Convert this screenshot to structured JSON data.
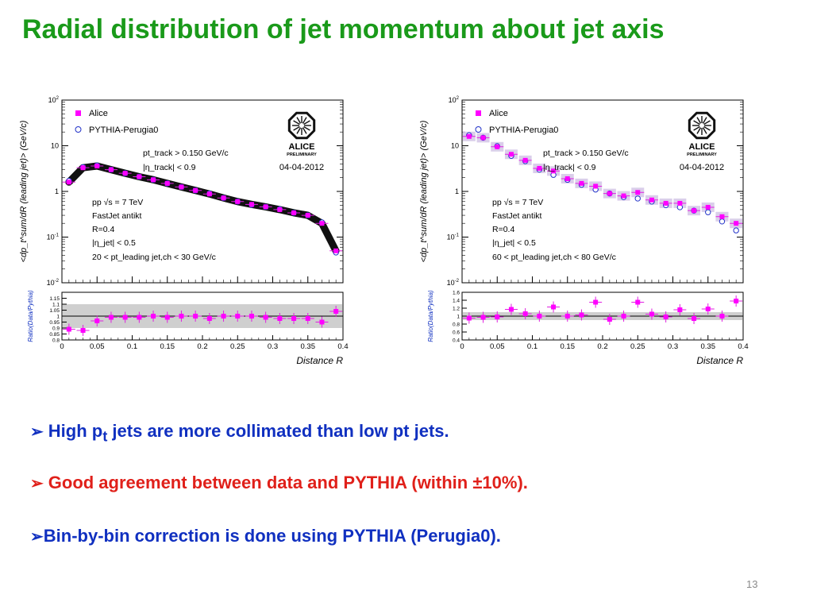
{
  "slide": {
    "title": "Radial distribution of jet momentum about jet axis",
    "page_number": "13"
  },
  "bullets": [
    {
      "arrow": "➢",
      "text_a": "High p",
      "sub": "t",
      "text_b": " jets are more collimated than low pt jets.",
      "color": "#1030c0"
    },
    {
      "arrow": "➢",
      "text_a": "Good agreement between data and PYTHIA (within ±10%).",
      "sub": "",
      "text_b": "",
      "color": "#e0201a"
    },
    {
      "arrow": "➢",
      "text_a": "Bin-by-bin correction is done using PYTHIA (Perugia0).",
      "sub": "",
      "text_b": "",
      "color": "#1030c0"
    }
  ],
  "chart_data": [
    {
      "type": "scatter",
      "legend": [
        "Alice",
        "PYTHIA-Perugia0"
      ],
      "logo_text": [
        "ALICE",
        "PRELIMINARY"
      ],
      "date": "04-04-2012",
      "cut_lines": [
        "pt_track > 0.150 GeV/c",
        "|η_track| < 0.9"
      ],
      "info_lines": [
        "pp √s = 7 TeV",
        "FastJet antikt",
        "R=0.4",
        "|η_jet| < 0.5",
        "20 < pt_leading jet,ch < 30 GeV/c"
      ],
      "ylabel": "<dp_t^sum/dR (leading jet)> (GeV/c)",
      "ratio_ylabel": "Ratio(Data/Pythia)",
      "xlabel": "Distance R",
      "xlim": [
        0,
        0.4
      ],
      "ylim": [
        0.01,
        100
      ],
      "yscale": "log",
      "x_ticks": [
        "0",
        "0.05",
        "0.1",
        "0.15",
        "0.2",
        "0.25",
        "0.3",
        "0.35",
        "0.4"
      ],
      "y_ticks": [
        "10^-2",
        "10^-1",
        "1",
        "10",
        "10^2"
      ],
      "ratio_ylim": [
        0.8,
        1.2
      ],
      "ratio_ticks": [
        "0.8",
        "0.85",
        "0.9",
        "0.95",
        "1",
        "1.05",
        "1.1",
        "1.15"
      ],
      "ratio_band": [
        0.9,
        1.1
      ],
      "x": [
        0.01,
        0.03,
        0.05,
        0.07,
        0.09,
        0.11,
        0.13,
        0.15,
        0.17,
        0.19,
        0.21,
        0.23,
        0.25,
        0.27,
        0.29,
        0.31,
        0.33,
        0.35,
        0.37,
        0.39
      ],
      "series": [
        {
          "name": "Alice",
          "values": [
            1.6,
            3.3,
            3.6,
            3.0,
            2.5,
            2.1,
            1.8,
            1.5,
            1.25,
            1.05,
            0.88,
            0.72,
            0.6,
            0.52,
            0.46,
            0.4,
            0.34,
            0.3,
            0.2,
            0.05
          ]
        },
        {
          "name": "PYTHIA-Perugia0",
          "values": [
            1.7,
            3.4,
            3.7,
            3.0,
            2.5,
            2.1,
            1.8,
            1.5,
            1.25,
            1.05,
            0.9,
            0.72,
            0.6,
            0.51,
            0.46,
            0.41,
            0.34,
            0.3,
            0.21,
            0.046
          ]
        }
      ],
      "ratio": [
        0.89,
        0.88,
        0.96,
        0.99,
        0.99,
        0.99,
        1.0,
        0.99,
        1.0,
        1.0,
        0.98,
        1.0,
        1.0,
        1.0,
        0.99,
        0.98,
        0.98,
        0.98,
        0.95,
        1.04
      ]
    },
    {
      "type": "scatter",
      "legend": [
        "Alice",
        "PYTHIA-Perugia0"
      ],
      "logo_text": [
        "ALICE",
        "PRELIMINARY"
      ],
      "date": "04-04-2012",
      "cut_lines": [
        "pt_track > 0.150 GeV/c",
        "|η_track| < 0.9"
      ],
      "info_lines": [
        "pp √s = 7 TeV",
        "FastJet antikt",
        "R=0.4",
        "|η_jet| < 0.5",
        "60 < pt_leading jet,ch < 80 GeV/c"
      ],
      "ylabel": "<dp_t^sum/dR (leading jet)> (GeV/c)",
      "ratio_ylabel": "Ratio(Data/Pythia)",
      "xlabel": "Distance R",
      "xlim": [
        0,
        0.4
      ],
      "ylim": [
        0.01,
        100
      ],
      "yscale": "log",
      "x_ticks": [
        "0",
        "0.05",
        "0.1",
        "0.15",
        "0.2",
        "0.25",
        "0.3",
        "0.35",
        "0.4"
      ],
      "y_ticks": [
        "10^-2",
        "10^-1",
        "1",
        "10",
        "10^2"
      ],
      "ratio_ylim": [
        0.4,
        1.6
      ],
      "ratio_ticks": [
        "0.4",
        "0.6",
        "0.8",
        "1",
        "1.2",
        "1.4",
        "1.6"
      ],
      "ratio_band": [
        0.9,
        1.1
      ],
      "x": [
        0.01,
        0.03,
        0.05,
        0.07,
        0.09,
        0.11,
        0.13,
        0.15,
        0.17,
        0.19,
        0.21,
        0.23,
        0.25,
        0.27,
        0.29,
        0.31,
        0.33,
        0.35,
        0.37,
        0.39
      ],
      "series": [
        {
          "name": "Alice",
          "values": [
            16,
            15,
            9.5,
            6.5,
            4.8,
            3.2,
            2.8,
            1.9,
            1.5,
            1.3,
            0.9,
            0.8,
            0.95,
            0.65,
            0.55,
            0.55,
            0.38,
            0.45,
            0.28,
            0.2
          ]
        },
        {
          "name": "PYTHIA-Perugia0",
          "values": [
            17,
            15,
            9.8,
            6.0,
            4.6,
            3.0,
            2.3,
            1.8,
            1.4,
            1.1,
            0.9,
            0.75,
            0.7,
            0.6,
            0.5,
            0.45,
            0.38,
            0.35,
            0.22,
            0.14
          ]
        }
      ],
      "ratio": [
        0.95,
        0.97,
        0.98,
        1.17,
        1.06,
        1.0,
        1.23,
        1.0,
        1.03,
        1.35,
        0.92,
        1.0,
        1.35,
        1.05,
        0.98,
        1.16,
        0.94,
        1.18,
        1.0,
        1.38
      ]
    }
  ]
}
